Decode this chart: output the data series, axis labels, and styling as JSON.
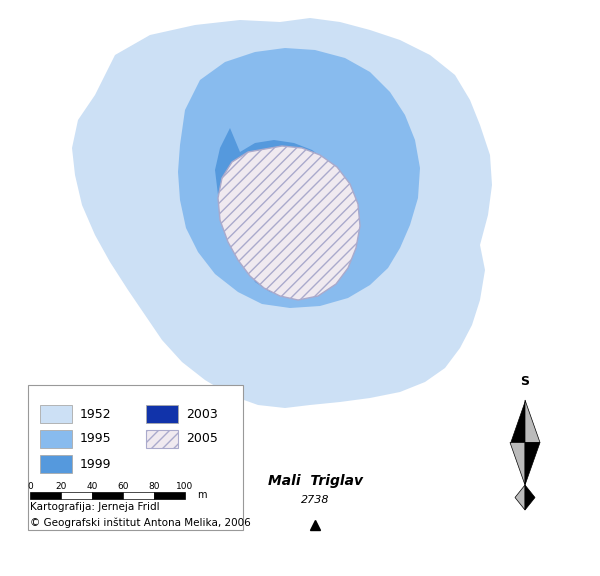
{
  "background_color": "#ffffff",
  "colors": {
    "1952": "#cce0f5",
    "1995": "#88bbee",
    "1999": "#5599dd",
    "2003": "#1133aa",
    "2005_fill": "#f0eaf0",
    "2005_edge": "#aaaacc"
  },
  "credit1": "Kartografija: Jerneja Fridl",
  "credit2": "© Geografski inštitut Antona Melika, 2006",
  "place_name": "Mali  Triglav",
  "elevation": "2738",
  "scale_ticks": [
    0,
    20,
    40,
    60,
    80,
    100
  ],
  "scale_unit": "m"
}
